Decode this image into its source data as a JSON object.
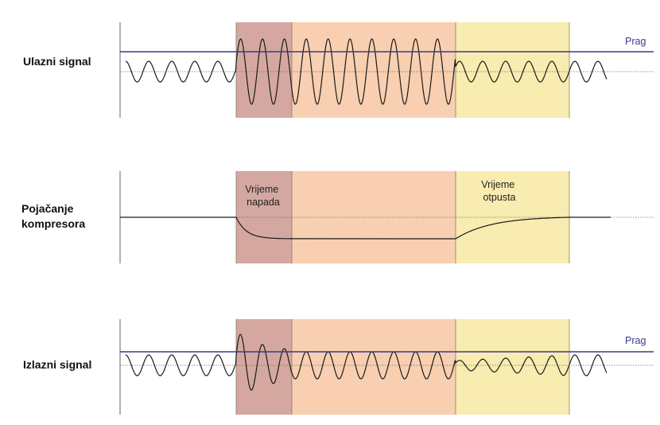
{
  "colors": {
    "attack_region": "#d4a8a0",
    "hold_region": "#f8cfb0",
    "release_region": "#f8ecb0",
    "threshold": "#3a3a8e",
    "wave": "#1a1a1a",
    "baseline": "#707070",
    "axis": "#666666"
  },
  "rows": [
    {
      "id": "input",
      "label": "Ulazni signal",
      "threshold_label": "Prag",
      "regions": []
    },
    {
      "id": "gain",
      "label": [
        "Pojačanje",
        "kompresora"
      ],
      "regions": [
        {
          "id": "attack",
          "lines": [
            "Vrijeme",
            "napada"
          ]
        },
        {
          "id": "release",
          "lines": [
            "Vrijeme",
            "otpusta"
          ]
        }
      ]
    },
    {
      "id": "output",
      "label": "Izlazni signal",
      "threshold_label": "Prag",
      "regions": []
    }
  ]
}
